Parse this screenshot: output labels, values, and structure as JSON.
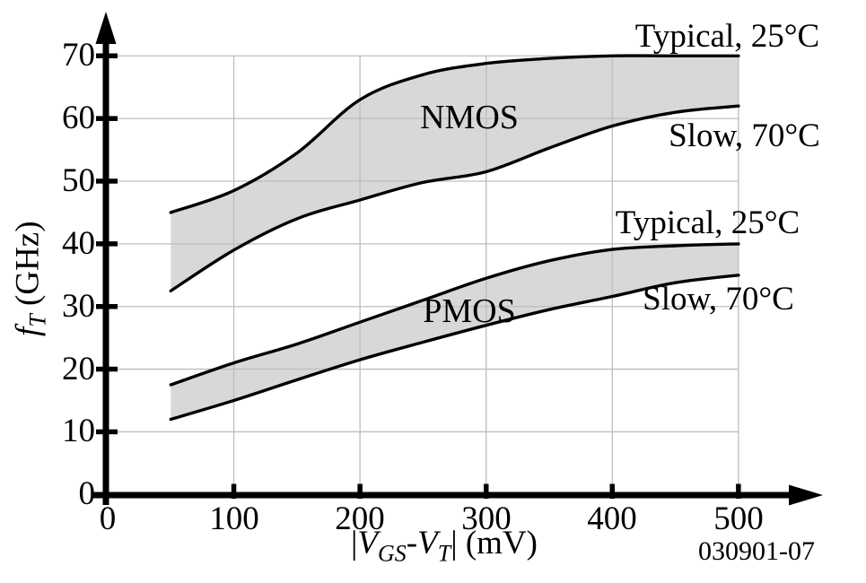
{
  "figure": {
    "id": "030901-07"
  },
  "chart_data": {
    "type": "area",
    "title": "",
    "xlabel": "|VGS-VT| (mV)",
    "ylabel": "fT (GHz)",
    "xlabel_parts": {
      "bar1": "|",
      "sym1": "V",
      "sub1": "GS",
      "dash": "-",
      "sym2": "V",
      "sub2": "T",
      "rest": "| (mV)"
    },
    "ylabel_parts": {
      "sym": "f",
      "sub": "T",
      "rest": " (GHz)"
    },
    "x_ticks": [
      0,
      100,
      200,
      300,
      400,
      500
    ],
    "y_ticks": [
      0,
      10,
      20,
      30,
      40,
      50,
      60,
      70
    ],
    "xlim": [
      0,
      560
    ],
    "ylim": [
      0,
      76
    ],
    "grid": true,
    "legend_position": "inline-annotations",
    "x": [
      50,
      100,
      150,
      200,
      250,
      300,
      350,
      400,
      450,
      500
    ],
    "bands": [
      {
        "name": "NMOS",
        "label": "NMOS",
        "series": [
          {
            "name": "Typical, 25°C",
            "values": [
              45,
              48.5,
              54.5,
              63,
              67,
              68.8,
              69.6,
              70,
              70,
              70
            ]
          },
          {
            "name": "Slow, 70°C",
            "values": [
              32.5,
              39,
              44,
              47,
              49.8,
              51.5,
              55.3,
              58.8,
              61,
              62
            ]
          }
        ]
      },
      {
        "name": "PMOS",
        "label": "PMOS",
        "series": [
          {
            "name": "Typical, 25°C",
            "values": [
              17.5,
              21,
              24,
              27.5,
              31,
              34.5,
              37.3,
              39.1,
              39.7,
              40
            ]
          },
          {
            "name": "Slow, 70°C",
            "values": [
              12,
              15,
              18.3,
              21.5,
              24.3,
              27,
              29.5,
              31.6,
              33.8,
              35
            ]
          }
        ]
      }
    ],
    "colors": {
      "band_fill": "#d8d8d8",
      "line": "#000000",
      "grid": "#bdbdbd",
      "axis": "#000000",
      "text": "#000000"
    }
  }
}
